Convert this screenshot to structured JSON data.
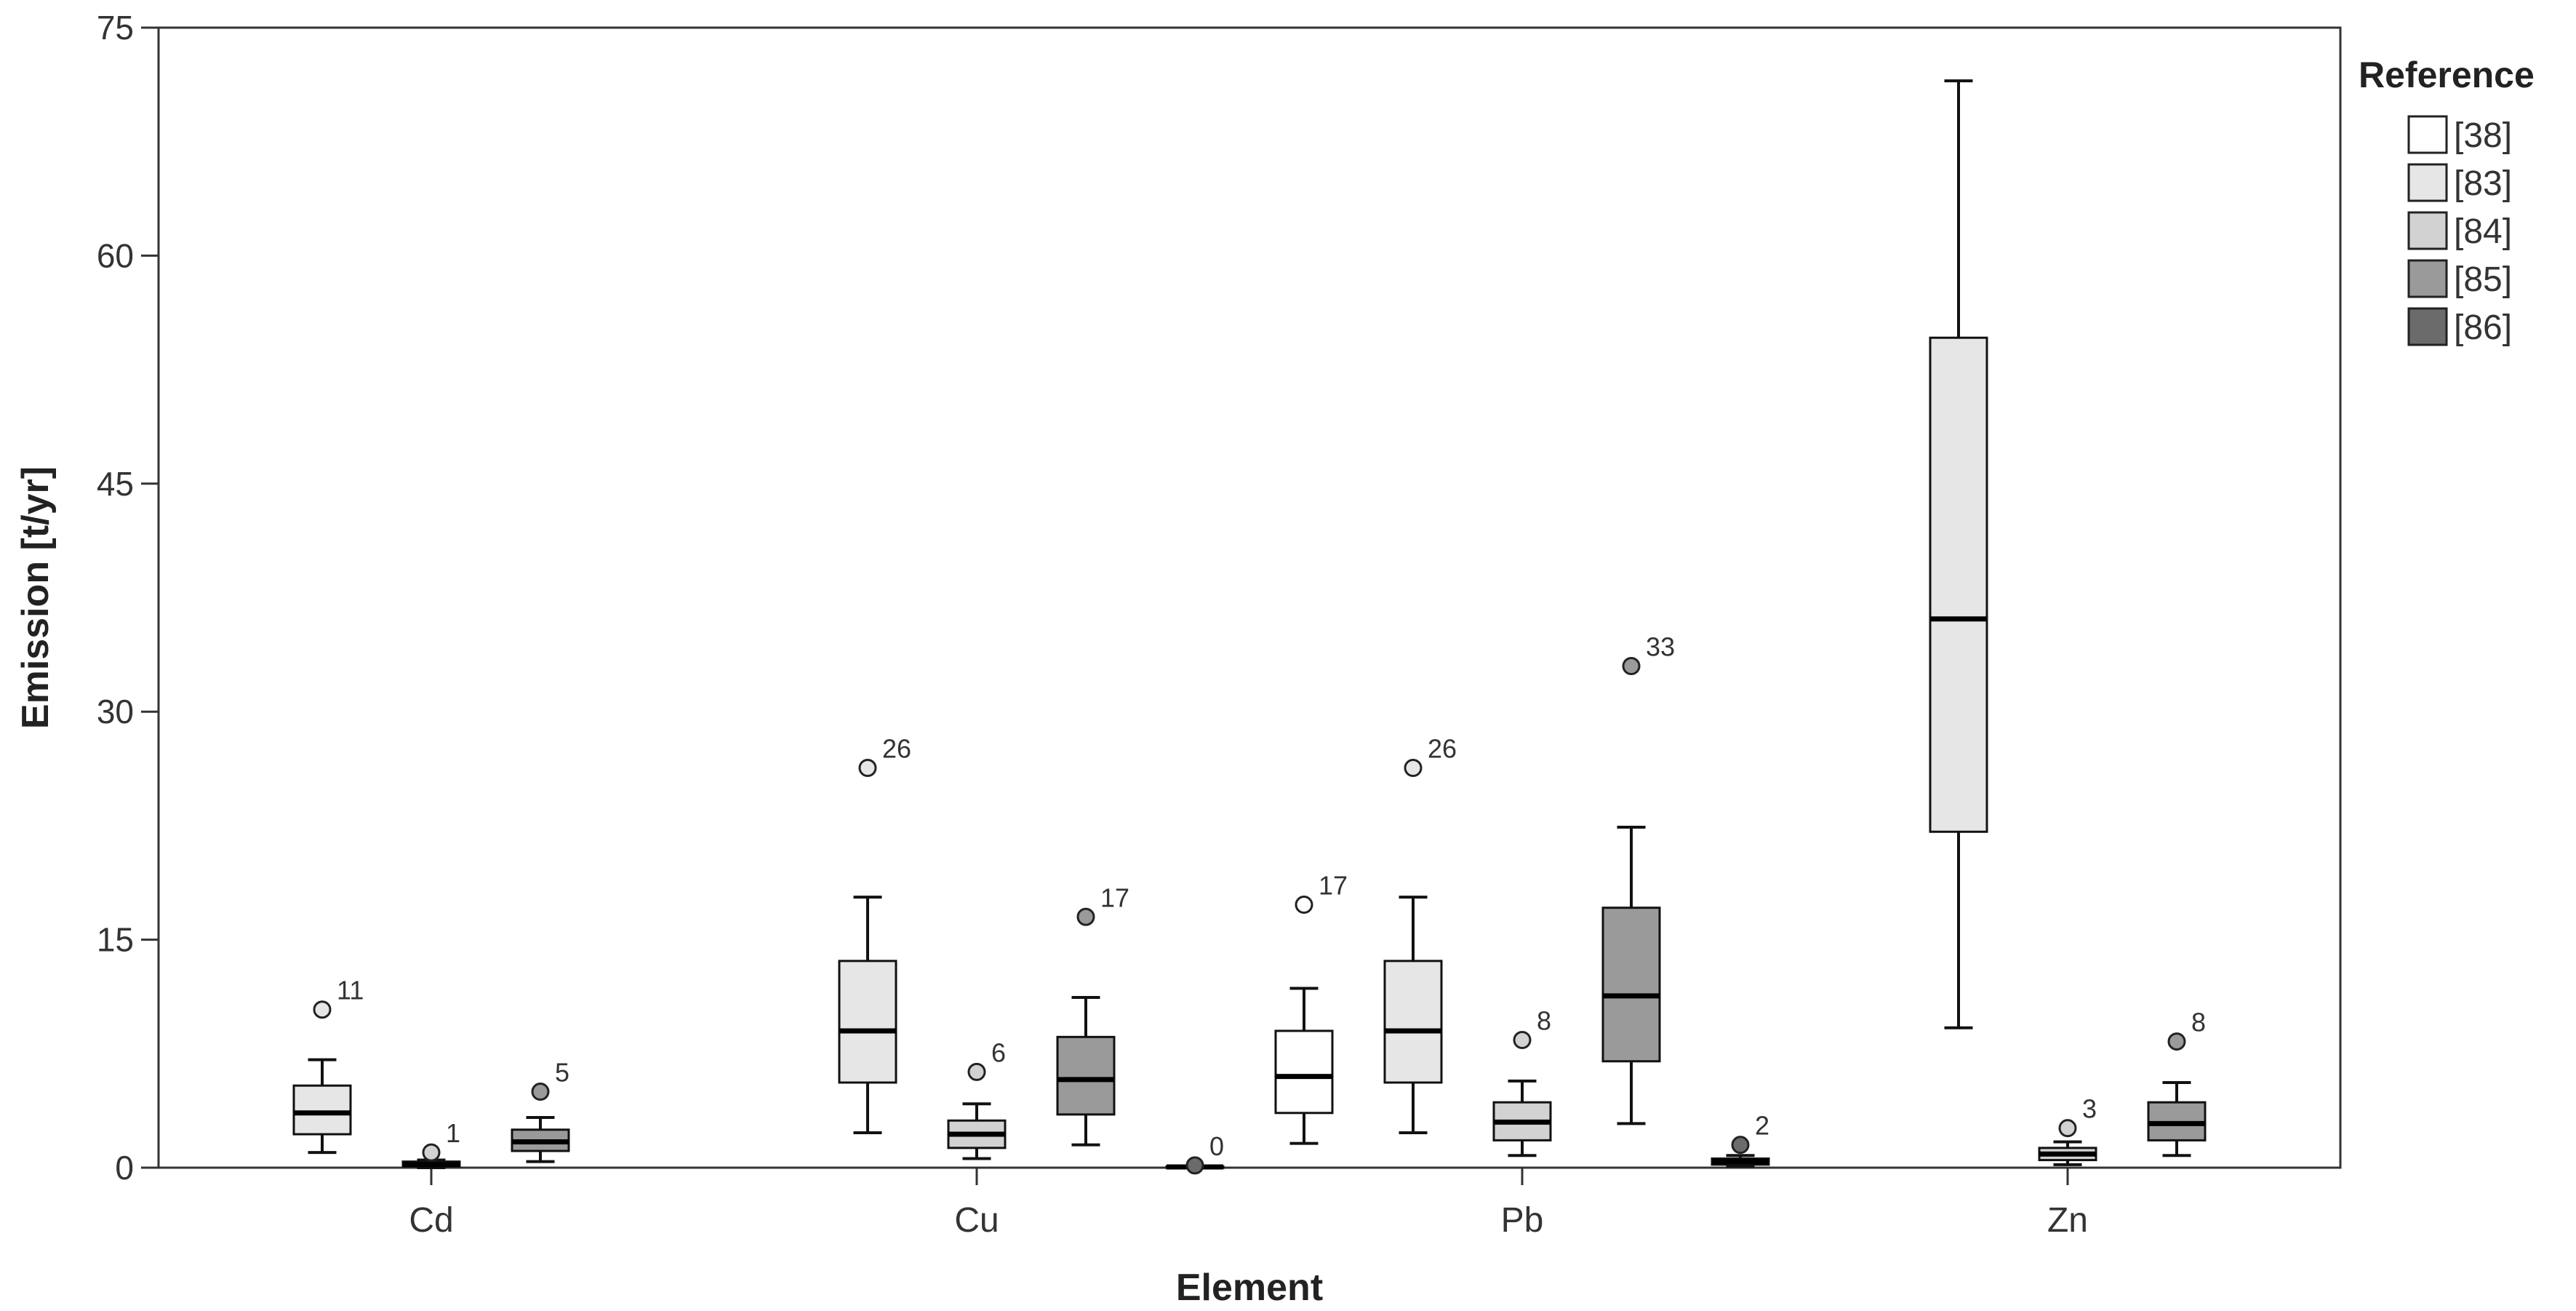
{
  "chart_data": {
    "type": "boxplot",
    "xlabel": "Element",
    "ylabel": "Emission [t/yr]",
    "ylim": [
      0,
      75
    ],
    "yticks": [
      0,
      15,
      30,
      45,
      60,
      75
    ],
    "categories": [
      "Cd",
      "Cu",
      "Pb",
      "Zn"
    ],
    "grid": false,
    "legend": {
      "title": "Reference",
      "position": "right",
      "entries": [
        {
          "label": "[38]",
          "color": "#ffffff"
        },
        {
          "label": "[83]",
          "color": "#e6e6e6"
        },
        {
          "label": "[84]",
          "color": "#d2d2d2"
        },
        {
          "label": "[85]",
          "color": "#9a9a9a"
        },
        {
          "label": "[86]",
          "color": "#6b6b6b"
        }
      ]
    },
    "series": [
      {
        "name": "[38]",
        "boxes": [
          null,
          null,
          {
            "category": "Pb",
            "min": 1.6,
            "q1": 3.6,
            "median": 6.0,
            "q3": 9.0,
            "max": 11.8,
            "outliers": [
              {
                "value": 17.3,
                "label": "17"
              }
            ]
          },
          null
        ]
      },
      {
        "name": "[83]",
        "boxes": [
          {
            "category": "Cd",
            "min": 1.0,
            "q1": 2.2,
            "median": 3.6,
            "q3": 5.4,
            "max": 7.1,
            "outliers": [
              {
                "value": 10.4,
                "label": "11"
              }
            ]
          },
          {
            "category": "Cu",
            "min": 2.3,
            "q1": 5.6,
            "median": 9.0,
            "q3": 13.6,
            "max": 17.8,
            "outliers": [
              {
                "value": 26.3,
                "label": "26"
              }
            ]
          },
          {
            "category": "Pb",
            "min": 2.3,
            "q1": 5.6,
            "median": 9.0,
            "q3": 13.6,
            "max": 17.8,
            "outliers": [
              {
                "value": 26.3,
                "label": "26"
              }
            ]
          },
          {
            "category": "Zn",
            "min": 9.2,
            "q1": 22.1,
            "median": 36.1,
            "q3": 54.6,
            "max": 71.5,
            "outliers": []
          }
        ]
      },
      {
        "name": "[84]",
        "boxes": [
          {
            "category": "Cd",
            "min": 0.0,
            "q1": 0.1,
            "median": 0.2,
            "q3": 0.4,
            "max": 0.5,
            "outliers": [
              {
                "value": 1.0,
                "label": "1"
              }
            ]
          },
          {
            "category": "Cu",
            "min": 0.6,
            "q1": 1.3,
            "median": 2.2,
            "q3": 3.1,
            "max": 4.2,
            "outliers": [
              {
                "value": 6.3,
                "label": "6"
              }
            ]
          },
          {
            "category": "Pb",
            "min": 0.8,
            "q1": 1.8,
            "median": 3.0,
            "q3": 4.3,
            "max": 5.7,
            "outliers": [
              {
                "value": 8.4,
                "label": "8"
              }
            ]
          },
          {
            "category": "Zn",
            "min": 0.2,
            "q1": 0.5,
            "median": 0.9,
            "q3": 1.3,
            "max": 1.7,
            "outliers": [
              {
                "value": 2.6,
                "label": "3"
              }
            ]
          }
        ]
      },
      {
        "name": "[85]",
        "boxes": [
          {
            "category": "Cd",
            "min": 0.4,
            "q1": 1.1,
            "median": 1.7,
            "q3": 2.5,
            "max": 3.3,
            "outliers": [
              {
                "value": 5.0,
                "label": "5"
              }
            ]
          },
          {
            "category": "Cu",
            "min": 1.5,
            "q1": 3.5,
            "median": 5.8,
            "q3": 8.6,
            "max": 11.2,
            "outliers": [
              {
                "value": 16.5,
                "label": "17"
              }
            ]
          },
          {
            "category": "Pb",
            "min": 2.9,
            "q1": 7.0,
            "median": 11.3,
            "q3": 17.1,
            "max": 22.4,
            "outliers": [
              {
                "value": 33.0,
                "label": "33"
              }
            ]
          },
          {
            "category": "Zn",
            "min": 0.8,
            "q1": 1.8,
            "median": 2.9,
            "q3": 4.3,
            "max": 5.6,
            "outliers": [
              {
                "value": 8.3,
                "label": "8"
              }
            ]
          }
        ]
      },
      {
        "name": "[86]",
        "boxes": [
          null,
          {
            "category": "Cu",
            "min": 0.0,
            "q1": 0.03,
            "median": 0.05,
            "q3": 0.08,
            "max": 0.1,
            "outliers": [
              {
                "value": 0.15,
                "label": "0"
              }
            ]
          },
          {
            "category": "Pb",
            "min": 0.1,
            "q1": 0.2,
            "median": 0.4,
            "q3": 0.6,
            "max": 0.8,
            "outliers": [
              {
                "value": 1.5,
                "label": "2"
              }
            ]
          },
          null
        ]
      }
    ]
  }
}
